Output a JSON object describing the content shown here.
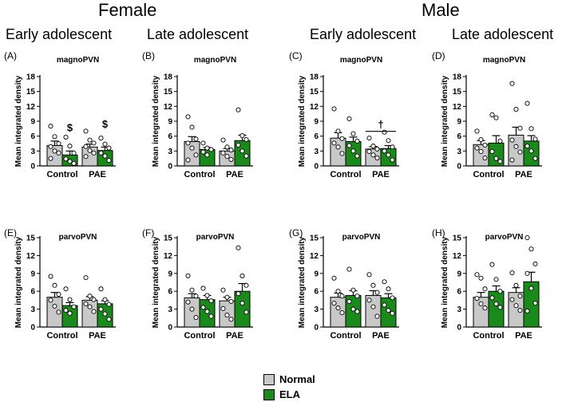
{
  "headers": {
    "female": "Female",
    "male": "Male",
    "groups": [
      "Early adolescent",
      "Late adolescent",
      "Early adolescent",
      "Late adolescent"
    ]
  },
  "legend": {
    "items": [
      {
        "label": "Normal",
        "color": "#c8c8c8"
      },
      {
        "label": "ELA",
        "color": "#1a8a1a"
      }
    ]
  },
  "chart_data": [
    {
      "panel": "(A)",
      "title": "magnoPVN",
      "type": "bar",
      "ylabel": "Mean integrated density",
      "ylim": [
        0,
        18
      ],
      "yticks": [
        0,
        3,
        6,
        9,
        12,
        15,
        18
      ],
      "categories": [
        "Control",
        "PAE"
      ],
      "series": [
        {
          "name": "Normal",
          "values": [
            4.1,
            3.8
          ],
          "errors": [
            0.9,
            0.6
          ],
          "points": [
            [
              8.0,
              5.9,
              4.5,
              3.9,
              3.0,
              2.6,
              1.5
            ],
            [
              7.0,
              5.2,
              4.6,
              3.9,
              3.1,
              2.6,
              1.9
            ]
          ]
        },
        {
          "name": "ELA",
          "values": [
            2.2,
            3.1
          ],
          "errors": [
            0.8,
            0.7
          ],
          "points": [
            [
              5.8,
              4.0,
              2.6,
              1.4,
              0.9,
              0.5
            ],
            [
              5.6,
              4.4,
              3.6,
              2.6,
              2.0,
              1.1
            ]
          ]
        }
      ],
      "annotations": [
        {
          "text": "$",
          "category": "Control",
          "series": "ELA",
          "y": 7.0
        },
        {
          "text": "$",
          "category": "PAE",
          "series": "ELA",
          "y": 7.7
        }
      ]
    },
    {
      "panel": "(B)",
      "title": "magnoPVN",
      "type": "bar",
      "ylabel": "Mean integrated density",
      "ylim": [
        0,
        18
      ],
      "yticks": [
        0,
        3,
        6,
        9,
        12,
        15,
        18
      ],
      "categories": [
        "Control",
        "PAE"
      ],
      "series": [
        {
          "name": "Normal",
          "values": [
            4.9,
            3.0
          ],
          "errors": [
            1.0,
            0.5
          ],
          "points": [
            [
              9.9,
              7.8,
              5.4,
              4.6,
              3.6,
              2.2,
              1.2
            ],
            [
              5.2,
              3.8,
              3.2,
              2.6,
              1.9,
              1.3
            ]
          ]
        },
        {
          "name": "ELA",
          "values": [
            3.3,
            5.1
          ],
          "errors": [
            0.4,
            1.1
          ],
          "points": [
            [
              4.6,
              3.6,
              3.3,
              2.8,
              2.2
            ],
            [
              11.3,
              6.1,
              5.3,
              4.2,
              3.0,
              2.0
            ]
          ]
        }
      ],
      "annotations": []
    },
    {
      "panel": "(C)",
      "title": "magnoPVN",
      "type": "bar",
      "ylabel": "Mean integrated density",
      "ylim": [
        0,
        18
      ],
      "yticks": [
        0,
        3,
        6,
        9,
        12,
        15,
        18
      ],
      "categories": [
        "Control",
        "PAE"
      ],
      "series": [
        {
          "name": "Normal",
          "values": [
            5.6,
            3.4
          ],
          "errors": [
            1.1,
            0.5
          ],
          "points": [
            [
              11.5,
              7.0,
              5.5,
              4.6,
              3.8,
              2.5
            ],
            [
              5.6,
              4.0,
              3.4,
              2.9,
              2.2,
              1.6
            ]
          ]
        },
        {
          "name": "ELA",
          "values": [
            4.9,
            3.5
          ],
          "errors": [
            0.9,
            0.6
          ],
          "points": [
            [
              9.5,
              6.5,
              5.0,
              4.1,
              3.0,
              2.0
            ],
            [
              6.8,
              5.1,
              3.8,
              3.0,
              2.2,
              1.2
            ]
          ]
        }
      ],
      "annotations": [
        {
          "text": "†",
          "category": "PAE",
          "span": true,
          "y": 7.6
        }
      ]
    },
    {
      "panel": "(D)",
      "title": "magnoPVN",
      "type": "bar",
      "ylabel": "Mean integrated density",
      "ylim": [
        0,
        18
      ],
      "yticks": [
        0,
        3,
        6,
        9,
        12,
        15,
        18
      ],
      "categories": [
        "Control",
        "PAE"
      ],
      "series": [
        {
          "name": "Normal",
          "values": [
            4.3,
            6.2
          ],
          "errors": [
            0.8,
            1.6
          ],
          "points": [
            [
              7.0,
              5.3,
              4.2,
              3.6,
              2.9,
              1.6
            ],
            [
              16.6,
              11.4,
              7.6,
              5.2,
              3.9,
              2.8,
              1.2
            ]
          ]
        },
        {
          "name": "ELA",
          "values": [
            4.6,
            5.0
          ],
          "errors": [
            1.5,
            1.1
          ],
          "points": [
            [
              10.3,
              9.7,
              5.0,
              2.9,
              1.5,
              0.9
            ],
            [
              12.6,
              7.5,
              5.4,
              4.0,
              3.0,
              1.5
            ]
          ]
        }
      ],
      "annotations": []
    },
    {
      "panel": "(E)",
      "title": "parvoPVN",
      "type": "bar",
      "ylabel": "Mean integrated density",
      "ylim": [
        0,
        15
      ],
      "yticks": [
        0,
        3,
        6,
        9,
        12,
        15
      ],
      "categories": [
        "Control",
        "PAE"
      ],
      "series": [
        {
          "name": "Normal",
          "values": [
            5.0,
            4.5
          ],
          "errors": [
            0.8,
            0.6
          ],
          "points": [
            [
              8.5,
              7.0,
              5.5,
              4.5,
              3.5,
              2.5
            ],
            [
              8.3,
              5.2,
              4.6,
              3.9,
              3.4,
              2.6
            ]
          ]
        },
        {
          "name": "ELA",
          "values": [
            3.6,
            3.9
          ],
          "errors": [
            0.5,
            0.5
          ],
          "points": [
            [
              6.4,
              4.6,
              3.4,
              2.8,
              2.3
            ],
            [
              6.4,
              4.6,
              3.8,
              3.0,
              2.2,
              1.3
            ]
          ]
        }
      ],
      "annotations": []
    },
    {
      "panel": "(F)",
      "title": "parvoPVN",
      "type": "bar",
      "ylabel": "Mean integrated density",
      "ylim": [
        0,
        15
      ],
      "yticks": [
        0,
        3,
        6,
        9,
        12,
        15
      ],
      "categories": [
        "Control",
        "PAE"
      ],
      "series": [
        {
          "name": "Normal",
          "values": [
            4.9,
            4.4
          ],
          "errors": [
            0.7,
            0.6
          ],
          "points": [
            [
              8.6,
              6.2,
              5.2,
              4.2,
              3.0,
              1.6
            ],
            [
              6.2,
              5.0,
              4.3,
              3.1,
              2.0,
              1.3
            ]
          ]
        },
        {
          "name": "ELA",
          "values": [
            4.6,
            6.0
          ],
          "errors": [
            0.7,
            1.3
          ],
          "points": [
            [
              6.5,
              5.3,
              4.4,
              3.3,
              2.6,
              1.8
            ],
            [
              13.3,
              8.6,
              7.0,
              5.6,
              4.0,
              2.5
            ]
          ]
        }
      ],
      "annotations": []
    },
    {
      "panel": "(G)",
      "title": "parvoPVN",
      "type": "bar",
      "ylabel": "Mean integrated density",
      "ylim": [
        0,
        15
      ],
      "yticks": [
        0,
        3,
        6,
        9,
        12,
        15
      ],
      "categories": [
        "Control",
        "PAE"
      ],
      "series": [
        {
          "name": "Normal",
          "values": [
            5.0,
            5.3
          ],
          "errors": [
            0.7,
            0.8
          ],
          "points": [
            [
              8.2,
              6.0,
              5.2,
              4.0,
              3.2,
              2.4
            ],
            [
              8.8,
              7.0,
              5.8,
              4.5,
              3.4,
              1.8
            ]
          ]
        },
        {
          "name": "ELA",
          "values": [
            5.3,
            4.9
          ],
          "errors": [
            0.8,
            0.7
          ],
          "points": [
            [
              9.7,
              6.2,
              5.2,
              4.3,
              3.0,
              2.6
            ],
            [
              7.6,
              6.4,
              4.9,
              3.7,
              2.8,
              2.3
            ]
          ]
        }
      ],
      "annotations": []
    },
    {
      "panel": "(H)",
      "title": "parvoPVN",
      "type": "bar",
      "ylabel": "Mean integrated density",
      "ylim": [
        0,
        15
      ],
      "yticks": [
        0,
        3,
        6,
        9,
        12,
        15
      ],
      "categories": [
        "Control",
        "PAE"
      ],
      "series": [
        {
          "name": "Normal",
          "values": [
            5.0,
            5.8
          ],
          "errors": [
            0.8,
            0.8
          ],
          "points": [
            [
              8.8,
              8.2,
              6.4,
              4.8,
              3.9,
              3.2
            ],
            [
              9.1,
              7.0,
              5.2,
              4.6,
              3.6,
              2.8
            ]
          ]
        },
        {
          "name": "ELA",
          "values": [
            6.0,
            7.6
          ],
          "errors": [
            0.9,
            1.6
          ],
          "points": [
            [
              10.5,
              8.0,
              6.0,
              4.9,
              3.9,
              3.3
            ],
            [
              15.0,
              13.1,
              10.6,
              9.0,
              6.5,
              4.0,
              2.7
            ]
          ]
        }
      ],
      "annotations": []
    }
  ]
}
